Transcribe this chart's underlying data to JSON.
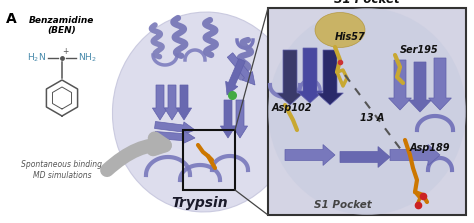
{
  "panel_label": "A",
  "benzamidine_title": "Benzamidine\n(BEN)",
  "spontaneous_text": "Spontaneous binding\nMD simulations",
  "trypsin_label": "Trypsin",
  "s1_pocket_title": "S1 Pocket",
  "s1_pocket_bottom": "S1 Pocket",
  "13A_text": "13 A",
  "background_color": "#ffffff",
  "protein_color_light": "#c8cce8",
  "protein_color_mid": "#8888bb",
  "protein_ribbon": "#7878bc",
  "residue_yellow": "#c8a832",
  "residue_orange": "#cc7700",
  "residue_red": "#cc2222",
  "benzamidine_color": "#4488aa",
  "green_sphere": "#44aa44",
  "dark_purple": "#2a2a5a",
  "arrow_gray": "#b0b0b0",
  "box_outline": "#333333",
  "s1box_fill": "#d4d4e4",
  "zoom_line_color": "#444444",
  "label_color": "#111111",
  "label_italic_color": "#333333"
}
